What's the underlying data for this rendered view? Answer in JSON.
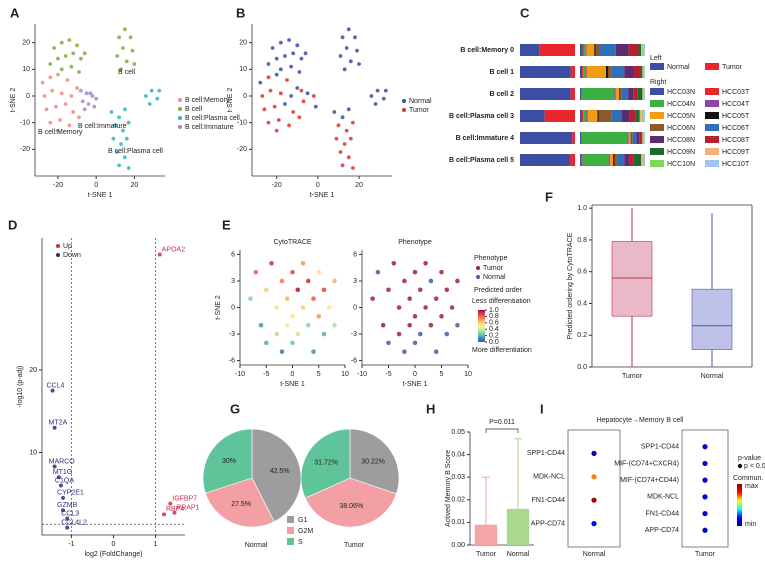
{
  "chart_data": [
    {
      "type": "scatter",
      "label": "A",
      "xlabel": "t-SNE 1",
      "ylabel": "t-SNE 2",
      "xlim": [
        -32,
        36
      ],
      "ylim": [
        -30,
        27
      ],
      "xticks": [
        -20,
        0,
        20
      ],
      "yticks": [
        -20,
        -10,
        0,
        10,
        20
      ],
      "annotations": [
        "B cell",
        "B cell:Memory",
        "B cell:Immature",
        "B cell:Plasma cell"
      ],
      "series": [
        {
          "name": "B cell:Memory",
          "color": "#ef8a7f",
          "x": [
            -28,
            -24,
            -20,
            -15,
            -27,
            -23,
            -18,
            -13,
            -10,
            -26,
            -21,
            -16,
            -12,
            -24,
            -19,
            -14,
            -9,
            -20
          ],
          "y": [
            5,
            7,
            8,
            6,
            0,
            2,
            1,
            0,
            3,
            -5,
            -4,
            -3,
            -6,
            -10,
            -9,
            -11,
            -8,
            -13
          ]
        },
        {
          "name": "B cell",
          "color": "#7fae3c",
          "x": [
            -22,
            -18,
            -14,
            -10,
            -20,
            -16,
            -12,
            -8,
            -24,
            -18,
            -13,
            -9,
            -6,
            12,
            15,
            18,
            14,
            19,
            11,
            16,
            20,
            13
          ],
          "y": [
            18,
            20,
            21,
            19,
            14,
            15,
            16,
            14,
            12,
            10,
            11,
            9,
            16,
            22,
            25,
            22,
            18,
            17,
            15,
            13,
            12,
            10
          ]
        },
        {
          "name": "B cell:Plasma cell",
          "color": "#2bb8c4",
          "x": [
            8,
            12,
            15,
            10,
            14,
            17,
            9,
            13,
            16,
            11,
            15,
            12,
            17,
            26,
            29,
            32,
            28,
            33
          ],
          "y": [
            -6,
            -8,
            -5,
            -11,
            -13,
            -10,
            -16,
            -18,
            -16,
            -21,
            -23,
            -26,
            -27,
            0,
            2,
            -1,
            -3,
            2
          ]
        },
        {
          "name": "B cell:Immature",
          "color": "#a486d4",
          "x": [
            -8,
            -5,
            -2,
            -7,
            -4,
            -1,
            -6,
            -3,
            0
          ],
          "y": [
            2,
            1,
            0,
            -2,
            -3,
            -4,
            -5,
            1,
            -1
          ]
        }
      ]
    },
    {
      "type": "scatter",
      "label": "B",
      "xlabel": "t-SNE 1",
      "ylabel": "t-SNE 2",
      "xlim": [
        -32,
        36
      ],
      "ylim": [
        -30,
        27
      ],
      "xticks": [
        -20,
        0,
        20
      ],
      "yticks": [
        -20,
        -10,
        0,
        10,
        20
      ],
      "series": [
        {
          "name": "Normal",
          "color": "#3b4ea3",
          "x": [
            -22,
            -18,
            -14,
            -10,
            -20,
            -16,
            -12,
            -8,
            -24,
            -18,
            -13,
            -9,
            -6,
            12,
            15,
            18,
            14,
            19,
            11,
            16,
            20,
            13,
            -28,
            -20,
            -13,
            -10,
            -16,
            -5,
            -1,
            8,
            12,
            15,
            26,
            29,
            32,
            28,
            33
          ],
          "y": [
            18,
            20,
            21,
            19,
            14,
            15,
            16,
            14,
            12,
            10,
            11,
            9,
            16,
            22,
            25,
            22,
            18,
            17,
            15,
            13,
            12,
            10,
            5,
            8,
            0,
            3,
            -3,
            1,
            -4,
            -6,
            -8,
            -5,
            0,
            2,
            -1,
            -3,
            2
          ]
        },
        {
          "name": "Tumor",
          "color": "#e0332e",
          "x": [
            -24,
            -15,
            -27,
            -23,
            -18,
            -26,
            -21,
            -12,
            -24,
            -19,
            -14,
            -9,
            -20,
            -8,
            -2,
            -7,
            10,
            14,
            17,
            9,
            13,
            16,
            11,
            15,
            12,
            17
          ],
          "y": [
            7,
            6,
            0,
            2,
            1,
            -5,
            -4,
            -6,
            -10,
            -9,
            -11,
            -8,
            -13,
            2,
            0,
            -2,
            -11,
            -13,
            -10,
            -16,
            -18,
            -16,
            -21,
            -23,
            -26,
            -27
          ]
        }
      ]
    },
    {
      "type": "stacked-bar",
      "label": "C",
      "left_title": "Left",
      "right_title": "Right",
      "categories": [
        "B cell:Memory 0",
        "B cell 1",
        "B cell 2",
        "B cell:Plasma cell 3",
        "B cell:Immature 4",
        "B cell:Plasma cell 5"
      ],
      "left_series": [
        {
          "name": "Normal",
          "color": "#3b4ea3",
          "values": [
            35,
            92,
            92,
            45,
            95,
            90
          ]
        },
        {
          "name": "Tumor",
          "color": "#e8262b",
          "values": [
            65,
            8,
            8,
            55,
            5,
            10
          ]
        }
      ],
      "right_series": [
        {
          "name": "HCC03N",
          "color": "#3b4ea3",
          "values": [
            4,
            3,
            2,
            3,
            2,
            2
          ]
        },
        {
          "name": "HCC03T",
          "color": "#e8262b",
          "values": [
            2,
            2,
            1,
            2,
            1,
            2
          ]
        },
        {
          "name": "HCC04N",
          "color": "#3cb043",
          "values": [
            3,
            3,
            50,
            5,
            70,
            40
          ]
        },
        {
          "name": "HCC04T",
          "color": "#8e44ad",
          "values": [
            1,
            2,
            2,
            2,
            2,
            2
          ]
        },
        {
          "name": "HCC05N",
          "color": "#f39c12",
          "values": [
            12,
            30,
            5,
            15,
            3,
            5
          ]
        },
        {
          "name": "HCC05T",
          "color": "#111111",
          "values": [
            2,
            3,
            1,
            2,
            1,
            2
          ]
        },
        {
          "name": "HCC06N",
          "color": "#8b5a2b",
          "values": [
            6,
            5,
            3,
            20,
            2,
            5
          ]
        },
        {
          "name": "HCC06T",
          "color": "#2f6fba",
          "values": [
            25,
            20,
            10,
            15,
            6,
            10
          ]
        },
        {
          "name": "HCC08N",
          "color": "#5b2c6f",
          "values": [
            20,
            15,
            8,
            12,
            4,
            8
          ]
        },
        {
          "name": "HCC08T",
          "color": "#b8202e",
          "values": [
            15,
            10,
            6,
            10,
            3,
            6
          ]
        },
        {
          "name": "HCC09N",
          "color": "#1e6b30",
          "values": [
            4,
            3,
            8,
            6,
            2,
            12
          ]
        },
        {
          "name": "HCC09T",
          "color": "#f5b07a",
          "values": [
            2,
            2,
            2,
            4,
            2,
            3
          ]
        },
        {
          "name": "HCC10N",
          "color": "#7ed957",
          "values": [
            2,
            1,
            1,
            2,
            1,
            2
          ]
        },
        {
          "name": "HCC10T",
          "color": "#9fc5ee",
          "values": [
            2,
            1,
            1,
            2,
            1,
            1
          ]
        }
      ]
    },
    {
      "type": "scatter",
      "label": "D",
      "xlabel": "log2 (FoldChange)",
      "ylabel": "-log10 (p-adj)",
      "xlim": [
        -1.7,
        1.7
      ],
      "ylim": [
        0,
        36
      ],
      "xticks": [
        -1,
        0,
        1
      ],
      "yticks": [
        10,
        20
      ],
      "vlines": [
        -1,
        1
      ],
      "hlines": [
        1.3
      ],
      "series": [
        {
          "name": "Up",
          "color": "#c9304f",
          "x": [
            1.1,
            1.35,
            1.2,
            1.45
          ],
          "y": [
            34,
            3.8,
            2.5,
            2.7
          ],
          "labels": [
            "APOA2",
            "IGFBP7",
            "RBP4",
            "PRAP1"
          ]
        },
        {
          "name": "Down",
          "color": "#2b2f7a",
          "x": [
            -1.45,
            -1.4,
            -1.4,
            -1.3,
            -1.25,
            -1.2,
            -1.2,
            -1.1,
            -1.1
          ],
          "y": [
            17.5,
            13,
            8.3,
            7,
            6,
            4.5,
            3,
            2,
            0.9
          ],
          "labels": [
            "CCL4",
            "MT2A",
            "MARCO",
            "MT1G",
            "C1QA",
            "CYP2E1",
            "GZMB",
            "CCL3",
            "CCL4L2"
          ]
        }
      ]
    },
    {
      "type": "scatter",
      "label": "E",
      "title": "CytoTRACE",
      "xlabel": "t-SNE 1",
      "ylabel": "t-SNE 2",
      "xlim": [
        -10,
        10
      ],
      "ylim": [
        -6.5,
        6.5
      ],
      "xticks": [
        -10,
        -5,
        0,
        5,
        10
      ],
      "yticks": [
        -6,
        -3,
        0,
        3,
        6
      ],
      "x": [
        -8,
        -7,
        -6,
        -5,
        -5,
        -4,
        -3,
        -3,
        -2,
        -2,
        -1,
        -1,
        0,
        0,
        0,
        1,
        1,
        2,
        2,
        3,
        3,
        4,
        4,
        5,
        5,
        6,
        6,
        7,
        8,
        8
      ],
      "y": [
        1,
        4,
        -2,
        2,
        -4,
        5,
        0,
        -3,
        3,
        -5,
        1,
        -2,
        4,
        -1,
        -4,
        2,
        -3,
        5,
        0,
        -2,
        3,
        -5,
        1,
        4,
        -1,
        -3,
        2,
        0,
        -2,
        3
      ],
      "values": [
        0.3,
        0.8,
        0.15,
        0.6,
        0.2,
        0.9,
        0.55,
        0.35,
        0.75,
        0.1,
        0.65,
        0.45,
        0.85,
        0.5,
        0.25,
        0.95,
        0.4,
        0.7,
        0.6,
        0.3,
        0.9,
        0.15,
        0.8,
        0.55,
        0.7,
        0.2,
        0.85,
        0.5,
        0.35,
        0.65
      ],
      "colors": [
        "#5e4fa2",
        "#3288bd",
        "#66c2a5",
        "#abdda4",
        "#e6f598",
        "#fee08b",
        "#fdae61",
        "#f46d43",
        "#d53e4f",
        "#9e0142"
      ],
      "colorbar": {
        "title": "Predicted order",
        "top": "Less differentiation",
        "bottom": "More differentiation",
        "lim": [
          0,
          1
        ],
        "ticks": [
          {
            "value": 0,
            "label": "0.0"
          },
          0.2,
          0.4,
          0.6,
          0.8,
          {
            "value": 1,
            "label": "1.0"
          }
        ]
      }
    },
    {
      "type": "scatter",
      "title": "Phenotype",
      "legend_title": "Phenotype",
      "xlabel": "t-SNE 1",
      "xlim": [
        -10,
        10
      ],
      "ylim": [
        -6.5,
        6.5
      ],
      "xticks": [
        -10,
        -5,
        0,
        5,
        10
      ],
      "yticks": [
        -6,
        -3,
        0,
        3,
        6
      ],
      "series": [
        {
          "name": "Tumor",
          "color": "#a11d3f",
          "x": [
            -8,
            -6,
            -5,
            -4,
            -3,
            -2,
            -1,
            0,
            0,
            1,
            2,
            2,
            3,
            4,
            5,
            5,
            6,
            7,
            8,
            -3,
            -1
          ],
          "y": [
            1,
            -2,
            2,
            5,
            0,
            3,
            1,
            4,
            -1,
            2,
            5,
            0,
            -2,
            1,
            4,
            -1,
            2,
            0,
            3,
            -3,
            -2
          ]
        },
        {
          "name": "Normal",
          "color": "#4b57a9",
          "x": [
            -7,
            -5,
            -2,
            0,
            1,
            3,
            4,
            6,
            8
          ],
          "y": [
            4,
            -4,
            -5,
            -4,
            -3,
            3,
            -5,
            -3,
            -2
          ]
        }
      ]
    },
    {
      "type": "box",
      "label": "F",
      "ylabel": "Predicted ordering by CytoTRACE",
      "ylim": [
        0,
        1.02
      ],
      "yticks": [
        {
          "value": 0,
          "label": "0.0"
        },
        0.2,
        0.4,
        0.6,
        0.8,
        {
          "value": 1,
          "label": "1.0"
        }
      ],
      "categories": [
        "Tumor",
        "Normal"
      ],
      "colors": [
        "#e3a2b4",
        "#a9aee0"
      ],
      "point_colors": [
        "#b8324f",
        "#4b57a9"
      ],
      "min": [
        0,
        0
      ],
      "q1": [
        0.32,
        0.11
      ],
      "median": [
        0.56,
        0.26
      ],
      "q3": [
        0.79,
        0.49
      ],
      "max": [
        1.0,
        0.97
      ]
    },
    {
      "type": "pie",
      "label": "G",
      "categories": [
        "G1",
        "G2M",
        "S"
      ],
      "colors": [
        "#9d9d9f",
        "#f3a0a4",
        "#5fc49a"
      ],
      "pies": [
        {
          "name": "Normal",
          "values": [
            42.5,
            27.5,
            30
          ],
          "value_labels": [
            "42.5%",
            "27.5%",
            "30%"
          ]
        },
        {
          "name": "Tumor",
          "values": [
            30.22,
            38.06,
            31.72
          ],
          "value_labels": [
            "30.22%",
            "38.06%",
            "31.72%"
          ]
        }
      ]
    },
    {
      "type": "bar",
      "label": "H",
      "ylabel": "Actived Memory B Score",
      "annotation": "P=0.011",
      "categories": [
        "Tumor",
        "Normal"
      ],
      "values": [
        0.009,
        0.016
      ],
      "errors": [
        0.021,
        0.031
      ],
      "colors": [
        "#f4a6a6",
        "#a9d88f"
      ],
      "ylim": [
        0,
        0.05
      ],
      "yticks": [
        {
          "value": 0,
          "label": "0.00"
        },
        0.01,
        0.02,
        0.03,
        0.04,
        0.05
      ]
    },
    {
      "type": "dotplot",
      "label": "I",
      "title": "Hepatocyte→Memory B cell",
      "legend": {
        "pvalue": "p-value",
        "sig": "p < 0.01",
        "prob": "Commun. Prob.",
        "max": "max",
        "min": "min"
      },
      "colors": [
        "#00008b",
        "#0000ff",
        "#00ffff",
        "#ffff00",
        "#ff0000",
        "#8b0000"
      ],
      "groups": [
        {
          "name": "Normal",
          "pairs": [
            "SPP1-CD44",
            "MDK-NCL",
            "FN1-CD44",
            "APP-CD74"
          ],
          "values": [
            0.05,
            0.7,
            0.95,
            0.15
          ]
        },
        {
          "name": "Tumor",
          "pairs": [
            "SPP1-CD44",
            "MIF-(CD74+CXCR4)",
            "MIF-(CD74+CD44)",
            "MDK-NCL",
            "FN1-CD44",
            "APP-CD74"
          ],
          "values": [
            0.12,
            0.1,
            0.1,
            0.12,
            0.1,
            0.1
          ]
        }
      ]
    }
  ]
}
